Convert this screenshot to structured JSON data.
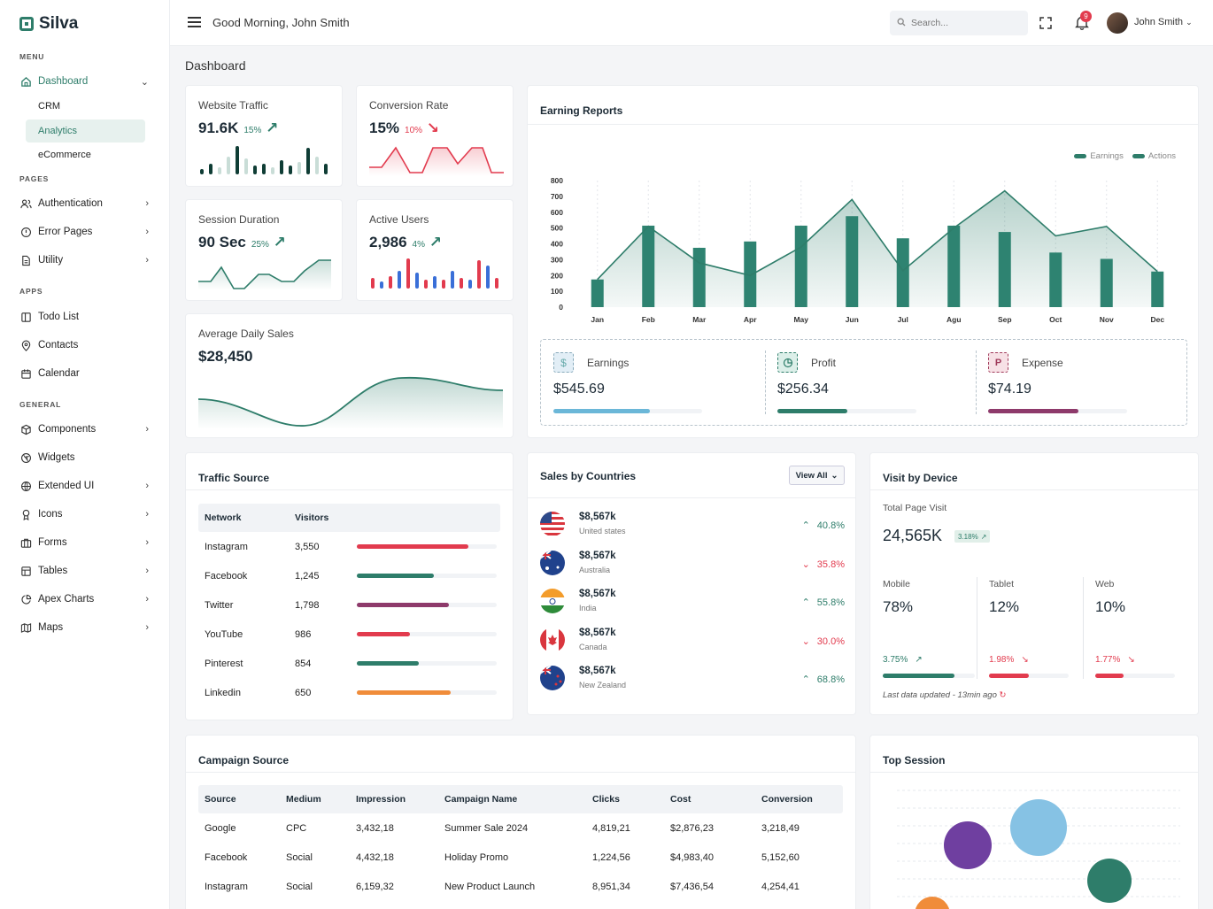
{
  "app": {
    "name": "Silva"
  },
  "sidebar": {
    "sections": {
      "menu": "MENU",
      "pages": "PAGES",
      "apps": "APPS",
      "general": "GENERAL"
    },
    "dashboard": "Dashboard",
    "sub": [
      "CRM",
      "Analytics",
      "eCommerce"
    ],
    "pages": [
      "Authentication",
      "Error Pages",
      "Utility"
    ],
    "apps": [
      "Todo List",
      "Contacts",
      "Calendar"
    ],
    "general": [
      "Components",
      "Widgets",
      "Extended UI",
      "Icons",
      "Forms",
      "Tables",
      "Apex Charts",
      "Maps"
    ]
  },
  "header": {
    "greeting": "Good Morning, John Smith",
    "search_placeholder": "Search...",
    "notifications": "9",
    "user": "John Smith"
  },
  "page": {
    "title": "Dashboard"
  },
  "stats": {
    "traffic": {
      "label": "Website Traffic",
      "value": "91.6K",
      "pct": "15%"
    },
    "conversion": {
      "label": "Conversion Rate",
      "value": "15%",
      "pct": "10%"
    },
    "session": {
      "label": "Session Duration",
      "value": "90 Sec",
      "pct": "25%"
    },
    "users": {
      "label": "Active Users",
      "value": "2,986",
      "pct": "4%"
    },
    "sales": {
      "label": "Average Daily Sales",
      "value": "$28,450"
    }
  },
  "earning": {
    "title": "Earning Reports",
    "legend": [
      "Earnings",
      "Actions"
    ],
    "earnings": {
      "label": "Earnings",
      "value": "$545.69",
      "progress": 0.65
    },
    "profit": {
      "label": "Profit",
      "value": "$256.34",
      "progress": 0.5
    },
    "expense": {
      "label": "Expense",
      "value": "$74.19",
      "progress": 0.65
    }
  },
  "chart_data": {
    "type": "bar",
    "categories": [
      "Jan",
      "Feb",
      "Mar",
      "Apr",
      "May",
      "Jun",
      "Jul",
      "Agu",
      "Sep",
      "Oct",
      "Nov",
      "Dec"
    ],
    "series": [
      {
        "name": "Earnings",
        "type": "bar",
        "values": [
          175,
          515,
          375,
          415,
          515,
          575,
          435,
          515,
          475,
          345,
          305,
          225
        ]
      },
      {
        "name": "Actions",
        "type": "area",
        "values": [
          175,
          510,
          280,
          200,
          380,
          680,
          230,
          500,
          735,
          450,
          510,
          225
        ]
      }
    ],
    "ylim": [
      0,
      800
    ],
    "yticks": [
      0,
      100,
      200,
      300,
      400,
      500,
      600,
      700,
      800
    ],
    "legend": "top-right",
    "grid": true
  },
  "traffic": {
    "title": "Traffic Source",
    "headers": [
      "Network",
      "Visitors"
    ],
    "rows": [
      {
        "name": "Instagram",
        "value": "3,550",
        "fill": 0.8,
        "color": "#e23b4e"
      },
      {
        "name": "Facebook",
        "value": "1,245",
        "fill": 0.55,
        "color": "#2e7d6a"
      },
      {
        "name": "Twitter",
        "value": "1,798",
        "fill": 0.66,
        "color": "#8e3a6b"
      },
      {
        "name": "YouTube",
        "value": "986",
        "fill": 0.38,
        "color": "#e23b4e"
      },
      {
        "name": "Pinterest",
        "value": "854",
        "fill": 0.44,
        "color": "#2e7d6a"
      },
      {
        "name": "Linkedin",
        "value": "650",
        "fill": 0.67,
        "color": "#f08c3a"
      }
    ]
  },
  "countries": {
    "title": "Sales by Countries",
    "button": "View All",
    "rows": [
      {
        "value": "$8,567k",
        "name": "United states",
        "pct": "40.8%",
        "dir": "up"
      },
      {
        "value": "$8,567k",
        "name": "Australia",
        "pct": "35.8%",
        "dir": "down"
      },
      {
        "value": "$8,567k",
        "name": "India",
        "pct": "55.8%",
        "dir": "up"
      },
      {
        "value": "$8,567k",
        "name": "Canada",
        "pct": "30.0%",
        "dir": "down"
      },
      {
        "value": "$8,567k",
        "name": "New Zealand",
        "pct": "68.8%",
        "dir": "up"
      }
    ]
  },
  "device": {
    "title": "Visit by Device",
    "total_label": "Total Page Visit",
    "total": "24,565K",
    "total_pct": "3.18%",
    "items": [
      {
        "label": "Mobile",
        "value": "78%",
        "pct": "3.75%",
        "dir": "up",
        "fill": 0.78
      },
      {
        "label": "Tablet",
        "value": "12%",
        "pct": "1.98%",
        "dir": "down",
        "fill": 0.5
      },
      {
        "label": "Web",
        "value": "10%",
        "pct": "1.77%",
        "dir": "down",
        "fill": 0.36
      }
    ],
    "updated": "Last data updated - 13min ago"
  },
  "campaign": {
    "title": "Campaign Source",
    "headers": [
      "Source",
      "Medium",
      "Impression",
      "Campaign Name",
      "Clicks",
      "Cost",
      "Conversion"
    ],
    "rows": [
      [
        "Google",
        "CPC",
        "3,432,18",
        "Summer Sale 2024",
        "4,819,21",
        "$2,876,23",
        "3,218,49"
      ],
      [
        "Facebook",
        "Social",
        "4,432,18",
        "Holiday Promo",
        "1,224,56",
        "$4,983,40",
        "5,152,60"
      ],
      [
        "Instagram",
        "Social",
        "6,159,32",
        "New Product Launch",
        "8,951,34",
        "$7,436,54",
        "4,254,41"
      ]
    ]
  },
  "session": {
    "title": "Top Session"
  }
}
